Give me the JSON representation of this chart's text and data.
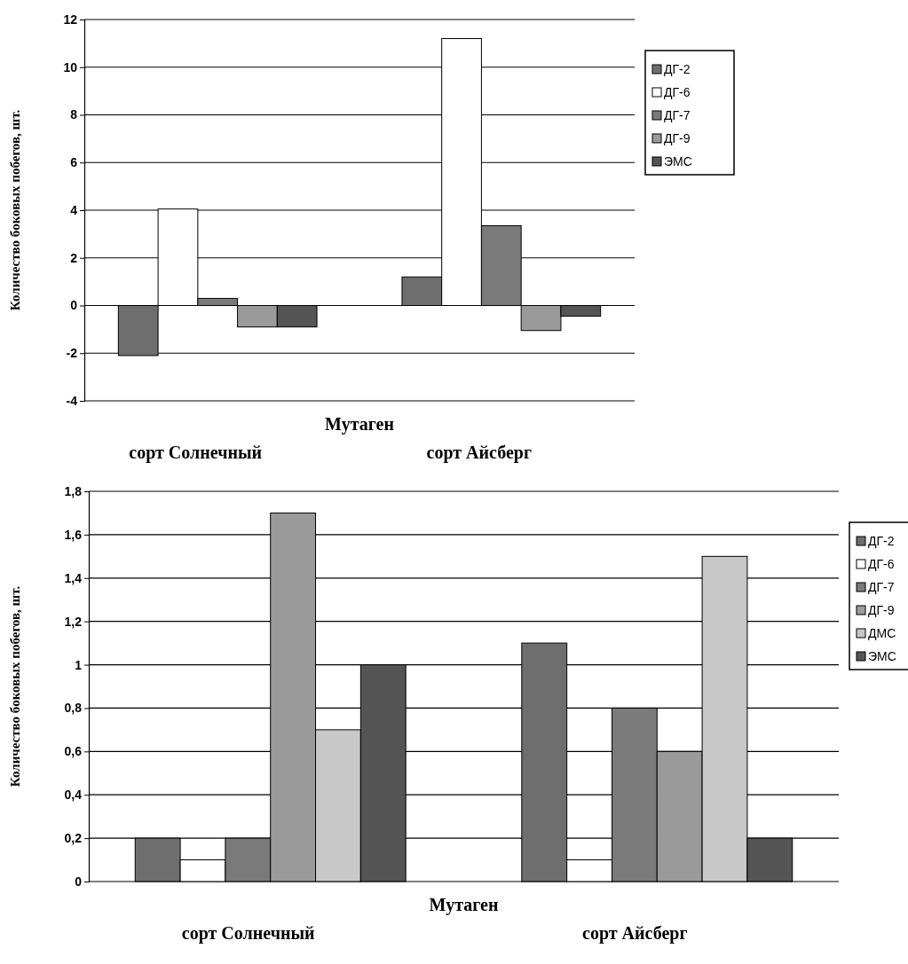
{
  "chart_data": [
    {
      "type": "bar",
      "xlabel": "Мутаген",
      "ylabel": "Количество боковых побегов, шт.",
      "categories": [
        "сорт Солнечный",
        "сорт Айсберг"
      ],
      "series": [
        {
          "name": "ДГ-2",
          "color": "#6e6e6e",
          "values": [
            -2.1,
            1.2
          ]
        },
        {
          "name": "ДГ-6",
          "color": "#ffffff",
          "values": [
            4.05,
            11.2
          ]
        },
        {
          "name": "ДГ-7",
          "color": "#7a7a7a",
          "values": [
            0.3,
            3.35
          ]
        },
        {
          "name": "ДГ-9",
          "color": "#9a9a9a",
          "values": [
            -0.9,
            -1.05
          ]
        },
        {
          "name": "ЭМС",
          "color": "#555555",
          "values": [
            -0.9,
            -0.45
          ]
        }
      ],
      "ylim": [
        -4,
        12
      ],
      "yticks": [
        -4,
        -2,
        0,
        2,
        4,
        6,
        8,
        10,
        12
      ],
      "grid": "y",
      "legend": "right"
    },
    {
      "type": "bar",
      "xlabel": "Мутаген",
      "ylabel": "Количество боковых побегов, шт.",
      "categories": [
        "сорт Солнечный",
        "сорт Айсберг"
      ],
      "series": [
        {
          "name": "ДГ-2",
          "color": "#6e6e6e",
          "values": [
            0.2,
            1.1
          ]
        },
        {
          "name": "ДГ-6",
          "color": "#ffffff",
          "values": [
            0.1,
            0.1
          ]
        },
        {
          "name": "ДГ-7",
          "color": "#7a7a7a",
          "values": [
            0.2,
            0.8
          ]
        },
        {
          "name": "ДГ-9",
          "color": "#9a9a9a",
          "values": [
            1.7,
            0.6
          ]
        },
        {
          "name": "ДМС",
          "color": "#c8c8c8",
          "values": [
            0.7,
            1.5
          ]
        },
        {
          "name": "ЭМС",
          "color": "#555555",
          "values": [
            1.0,
            0.2
          ]
        }
      ],
      "ylim": [
        0,
        1.8
      ],
      "yticks": [
        0,
        {
          "value": 0.2,
          "label": "0,2"
        },
        {
          "value": 0.4,
          "label": "0,4"
        },
        {
          "value": 0.6,
          "label": "0,6"
        },
        {
          "value": 0.8,
          "label": "0,8"
        },
        1,
        {
          "value": 1.2,
          "label": "1,2"
        },
        {
          "value": 1.4,
          "label": "1,4"
        },
        {
          "value": 1.6,
          "label": "1,6"
        },
        {
          "value": 1.8,
          "label": "1,8"
        }
      ],
      "grid": "y",
      "legend": "right"
    }
  ]
}
